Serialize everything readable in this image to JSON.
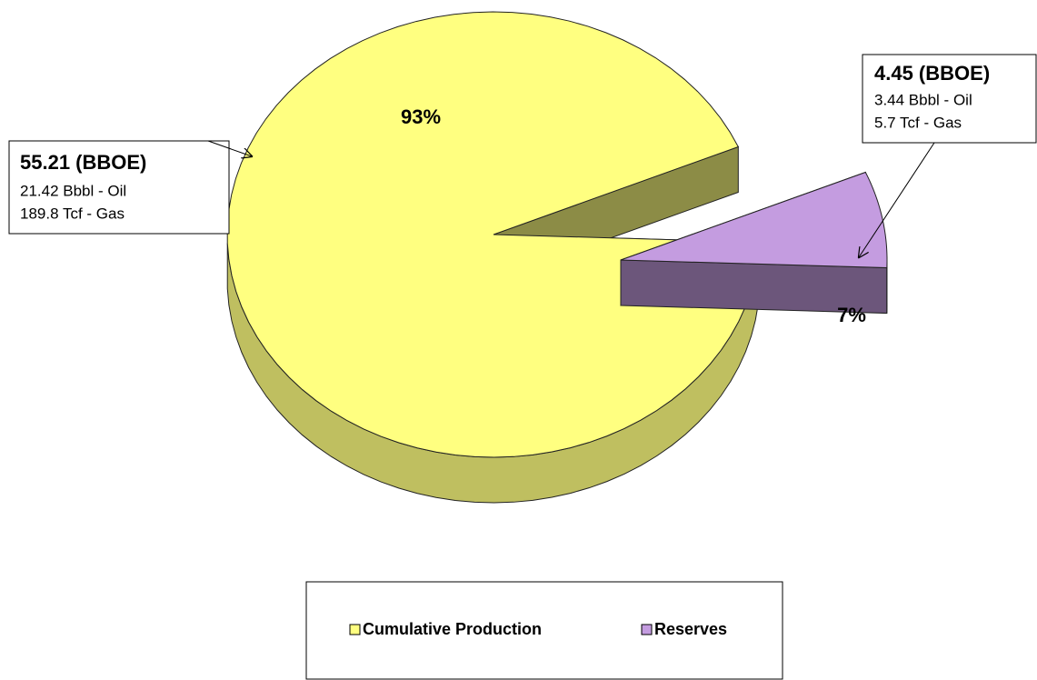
{
  "chart_data": {
    "type": "pie",
    "categories": [
      "Cumulative Production",
      "Reserves"
    ],
    "values": [
      93,
      7
    ],
    "value_labels": [
      "93%",
      "7%"
    ],
    "colors": [
      "#ffff80",
      "#c49ce0"
    ],
    "exploded": [
      false,
      true
    ],
    "legend": "bottom",
    "annotations": [
      {
        "title": "55.21 (BBOE)",
        "lines": [
          "21.42 Bbbl - Oil",
          "189.8 Tcf - Gas"
        ]
      },
      {
        "title": "4.45 (BBOE)",
        "lines": [
          "3.44 Bbbl - Oil",
          "5.7 Tcf - Gas"
        ]
      }
    ]
  }
}
